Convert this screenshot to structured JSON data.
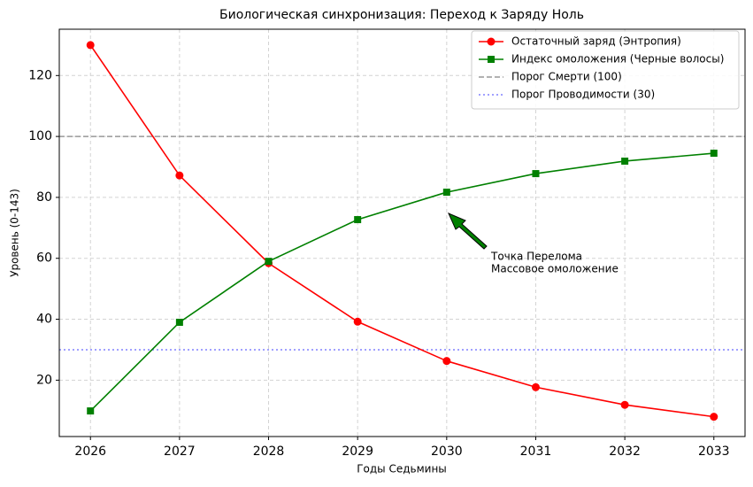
{
  "chart_data": {
    "type": "line",
    "title": "Биологическая синхронизация: Переход к Заряду Ноль",
    "x_label": "Годы Седьмины",
    "y_label": "Уровень (0-143)",
    "x": [
      2026,
      2027,
      2028,
      2029,
      2030,
      2031,
      2032,
      2033
    ],
    "series": [
      {
        "name": "Остаточный заряд (Энтропия)",
        "color": "#ff0000",
        "marker": "circle",
        "values": [
          130,
          87.2,
          58.4,
          39.2,
          26.3,
          17.7,
          11.9,
          8.0
        ]
      },
      {
        "name": "Индекс омоложения (Черные волосы)",
        "color": "#008000",
        "marker": "square",
        "values": [
          9.9,
          39.0,
          59.0,
          72.7,
          81.7,
          87.8,
          91.9,
          94.5
        ]
      }
    ],
    "reference_lines": [
      {
        "name": "Порог Смерти (100)",
        "value": 100,
        "color": "#999999",
        "style": "dashed"
      },
      {
        "name": "Порог Проводимости (30)",
        "value": 30,
        "color": "#8080ff",
        "style": "dotted"
      }
    ],
    "annotation": [
      "Точка Перелома",
      "Массовое омоложение"
    ],
    "xlim": [
      2025.65,
      2033.35
    ],
    "ylim": [
      1.5,
      135.2
    ],
    "xticks": [
      2026,
      2027,
      2028,
      2029,
      2030,
      2031,
      2032,
      2033
    ],
    "yticks": [
      20,
      40,
      60,
      80,
      100,
      120
    ],
    "grid": true,
    "legend": "upper right"
  }
}
